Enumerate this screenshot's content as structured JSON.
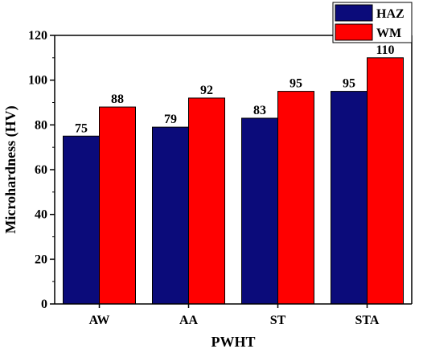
{
  "chart_data": {
    "type": "bar",
    "categories": [
      "AW",
      "AA",
      "ST",
      "STA"
    ],
    "series": [
      {
        "name": "HAZ",
        "values": [
          75,
          79,
          83,
          95
        ],
        "color": "#0b0b7a"
      },
      {
        "name": "WM",
        "values": [
          88,
          92,
          95,
          110
        ],
        "color": "#ff0000"
      }
    ],
    "xlabel": "PWHT",
    "ylabel": "Microhardness (HV)",
    "ylim": [
      0,
      120
    ],
    "yticks": [
      0,
      20,
      40,
      60,
      80,
      100,
      120
    ],
    "grid": false,
    "legend_position": "top-right"
  }
}
